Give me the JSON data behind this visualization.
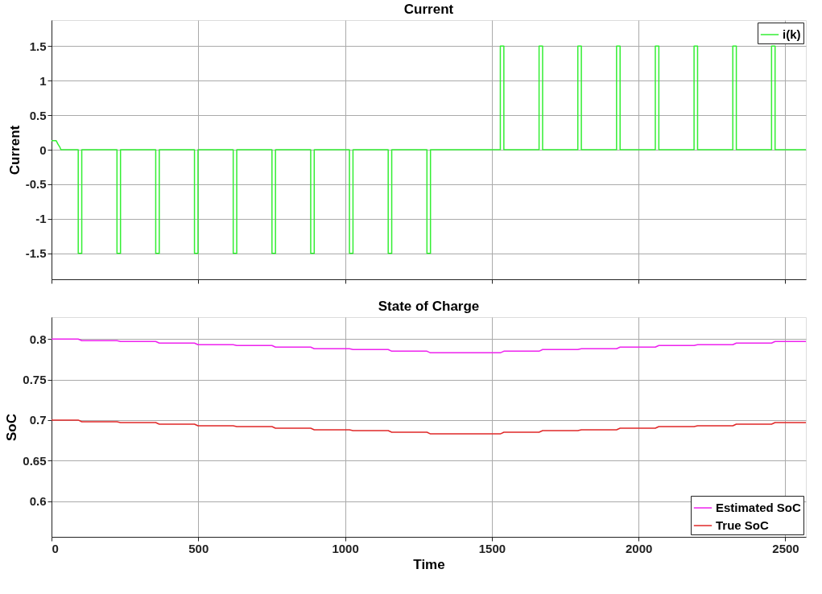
{
  "chart_data": [
    {
      "type": "line",
      "title": "Current",
      "ylabel": "Current",
      "xlim": [
        0,
        2570
      ],
      "xticks": [
        0,
        500,
        1000,
        1500,
        2000,
        2500
      ],
      "ylim": [
        -1.875,
        1.875
      ],
      "yticks": [
        -1.5,
        -1,
        -0.5,
        0,
        0.5,
        1,
        1.5
      ],
      "grid": true,
      "legend": "top right",
      "tick_labels": "y",
      "line_style": "solid",
      "marker": "none",
      "series": [
        {
          "name": "i(k)",
          "color": "#33ee33",
          "x": [
            0,
            16,
            22,
            28,
            32,
            91,
            91,
            103,
            103,
            223,
            223,
            235,
            235,
            355,
            355,
            367,
            367,
            487,
            487,
            499,
            499,
            619,
            619,
            631,
            631,
            751,
            751,
            763,
            763,
            883,
            883,
            895,
            895,
            1015,
            1015,
            1027,
            1027,
            1147,
            1147,
            1159,
            1159,
            1279,
            1279,
            1291,
            1291,
            1529,
            1529,
            1541,
            1541,
            1661,
            1661,
            1673,
            1673,
            1793,
            1793,
            1805,
            1805,
            1925,
            1925,
            1937,
            1937,
            2057,
            2057,
            2069,
            2069,
            2189,
            2189,
            2201,
            2201,
            2321,
            2321,
            2333,
            2333,
            2453,
            2453,
            2465,
            2465,
            2570
          ],
          "values": [
            0.13,
            0.13,
            0.08,
            0.04,
            0,
            0,
            -1.5,
            -1.5,
            0,
            0,
            -1.5,
            -1.5,
            0,
            0,
            -1.5,
            -1.5,
            0,
            0,
            -1.5,
            -1.5,
            0,
            0,
            -1.5,
            -1.5,
            0,
            0,
            -1.5,
            -1.5,
            0,
            0,
            -1.5,
            -1.5,
            0,
            0,
            -1.5,
            -1.5,
            0,
            0,
            -1.5,
            -1.5,
            0,
            0,
            -1.5,
            -1.5,
            0,
            0,
            1.5,
            1.5,
            0,
            0,
            1.5,
            1.5,
            0,
            0,
            1.5,
            1.5,
            0,
            0,
            1.5,
            1.5,
            0,
            0,
            1.5,
            1.5,
            0,
            0,
            1.5,
            1.5,
            0,
            0,
            1.5,
            1.5,
            0,
            0,
            1.5,
            1.5,
            0,
            0
          ]
        }
      ]
    },
    {
      "type": "line",
      "title": "State of Charge",
      "xlabel": "Time",
      "ylabel": "SoC",
      "xlim": [
        0,
        2570
      ],
      "xticks": [
        0,
        500,
        1000,
        1500,
        2000,
        2500
      ],
      "ylim": [
        0.556,
        0.827
      ],
      "yticks": [
        0.6,
        0.65,
        0.7,
        0.75,
        0.8
      ],
      "grid": true,
      "legend": "bottom right",
      "line_style": "solid",
      "marker": "none",
      "series": [
        {
          "name": "Estimated SoC",
          "color": "#ee22ee",
          "x": [
            0,
            30,
            91,
            103,
            223,
            235,
            355,
            367,
            487,
            499,
            619,
            631,
            751,
            763,
            883,
            895,
            1015,
            1027,
            1147,
            1159,
            1279,
            1291,
            1529,
            1541,
            1661,
            1673,
            1793,
            1805,
            1925,
            1937,
            2057,
            2069,
            2189,
            2201,
            2321,
            2333,
            2453,
            2465,
            2570
          ],
          "values": [
            0.8,
            0.8,
            0.8,
            0.798,
            0.798,
            0.797,
            0.797,
            0.795,
            0.795,
            0.793,
            0.793,
            0.792,
            0.792,
            0.79,
            0.79,
            0.788,
            0.788,
            0.787,
            0.787,
            0.785,
            0.785,
            0.783,
            0.783,
            0.785,
            0.785,
            0.787,
            0.787,
            0.788,
            0.788,
            0.79,
            0.79,
            0.792,
            0.792,
            0.793,
            0.793,
            0.795,
            0.795,
            0.797,
            0.797
          ]
        },
        {
          "name": "True SoC",
          "color": "#e02828",
          "x": [
            0,
            30,
            91,
            103,
            223,
            235,
            355,
            367,
            487,
            499,
            619,
            631,
            751,
            763,
            883,
            895,
            1015,
            1027,
            1147,
            1159,
            1279,
            1291,
            1529,
            1541,
            1661,
            1673,
            1793,
            1805,
            1925,
            1937,
            2057,
            2069,
            2189,
            2201,
            2321,
            2333,
            2453,
            2465,
            2570
          ],
          "values": [
            0.7,
            0.7,
            0.7,
            0.698,
            0.698,
            0.697,
            0.697,
            0.695,
            0.695,
            0.693,
            0.693,
            0.692,
            0.692,
            0.69,
            0.69,
            0.688,
            0.688,
            0.687,
            0.687,
            0.685,
            0.685,
            0.683,
            0.683,
            0.685,
            0.685,
            0.687,
            0.687,
            0.688,
            0.688,
            0.69,
            0.69,
            0.692,
            0.692,
            0.693,
            0.693,
            0.695,
            0.695,
            0.697,
            0.697
          ]
        }
      ]
    }
  ]
}
